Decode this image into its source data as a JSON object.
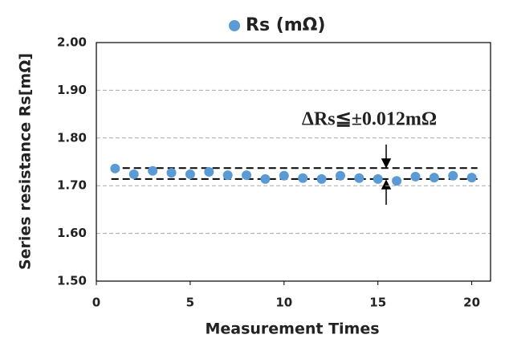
{
  "chart_data": {
    "type": "scatter",
    "legend_position": "top",
    "x_label": "Measurement Times",
    "y_label": "Series resistance Rs[mΩ]",
    "annotation": "ΔRs≦±0.012mΩ",
    "series": [
      {
        "name": "Rs (mΩ)",
        "color": "#5b9bd5",
        "x": [
          1,
          2,
          3,
          4,
          5,
          6,
          7,
          8,
          9,
          10,
          11,
          12,
          13,
          14,
          15,
          16,
          17,
          18,
          19,
          20
        ],
        "values": [
          1.736,
          1.724,
          1.731,
          1.727,
          1.724,
          1.729,
          1.722,
          1.722,
          1.714,
          1.721,
          1.716,
          1.714,
          1.721,
          1.716,
          1.714,
          1.71,
          1.719,
          1.717,
          1.721,
          1.717
        ]
      }
    ],
    "reference_lines": [
      1.737,
      1.714
    ],
    "xlim": [
      0,
      21
    ],
    "xticks": [
      0,
      5,
      10,
      15,
      20
    ],
    "ylim": [
      1.5,
      2.0
    ],
    "yticks": [
      {
        "value": 1.5,
        "label": "1.50"
      },
      {
        "value": 1.6,
        "label": "1.60"
      },
      {
        "value": 1.7,
        "label": "1.70"
      },
      {
        "value": 1.8,
        "label": "1.80"
      },
      {
        "value": 1.9,
        "label": "1.90"
      },
      {
        "value": 2.0,
        "label": "2.00"
      }
    ],
    "grid": true
  }
}
